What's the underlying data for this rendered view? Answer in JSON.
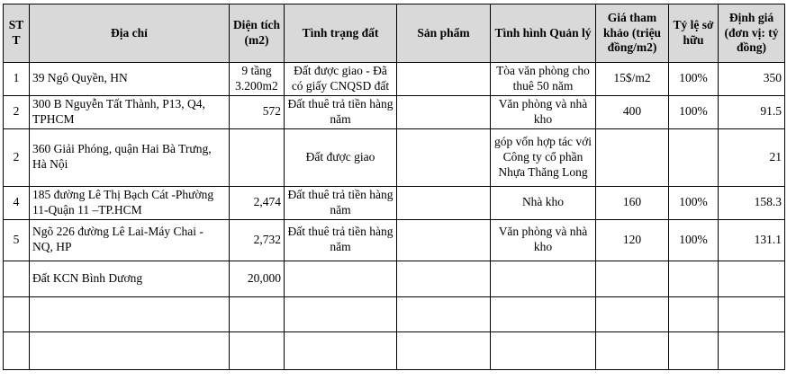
{
  "colors": {
    "header_bg": "#d9d9d9",
    "border": "#000000",
    "text": "#000000"
  },
  "table": {
    "columns": [
      "STT",
      "Địa chỉ",
      "Diện tích (m2)",
      "Tình trạng đất",
      "Sản phẩm",
      "Tình hình Quản lý",
      "Giá tham khảo (triệu đồng/m2)",
      "Tỷ lệ sở hữu",
      "Định giá (đơn vị: tỷ đồng)"
    ],
    "rows": [
      [
        "1",
        "39 Ngô Quyền, HN",
        "9 tầng\n3.200m2",
        "Đất được giao - Đã có giấy CNQSD đất",
        "",
        "Tòa văn phòng cho thuê 50 năm",
        "15$/m2",
        "100%",
        "350"
      ],
      [
        "2",
        "300 B Nguyễn Tất Thành, P13, Q4, TPHCM",
        "572",
        "Đất thuê trả tiền hàng năm",
        "",
        "Văn phòng và nhà kho",
        "400",
        "100%",
        "91.5"
      ],
      [
        "2",
        "360 Giải Phóng, quận Hai Bà Trưng, Hà Nội",
        "",
        "Đất được giao",
        "",
        "góp vốn hợp tác với Công ty cổ phần Nhựa Thăng Long",
        "",
        "",
        "21"
      ],
      [
        "4",
        "185 đường Lê Thị Bạch Cát -Phường 11-Quận 11 –TP.HCM",
        "2,474",
        "Đất thuê trả tiền hàng năm",
        "",
        "Nhà kho",
        "160",
        "100%",
        "158.3"
      ],
      [
        "5",
        "Ngõ 226 đường Lê Lai-Máy Chai - NQ, HP",
        "2,732",
        "Đất thuê trả tiền hàng năm",
        "",
        "Văn phòng và nhà kho",
        "120",
        "100%",
        "131.1"
      ],
      [
        "",
        "Đất KCN Bình Dương",
        "20,000",
        "",
        "",
        "",
        "",
        "",
        ""
      ],
      [
        "",
        "",
        "",
        "",
        "",
        "",
        "",
        "",
        ""
      ],
      [
        "",
        "",
        "",
        "",
        "",
        "",
        "",
        "",
        ""
      ]
    ]
  }
}
